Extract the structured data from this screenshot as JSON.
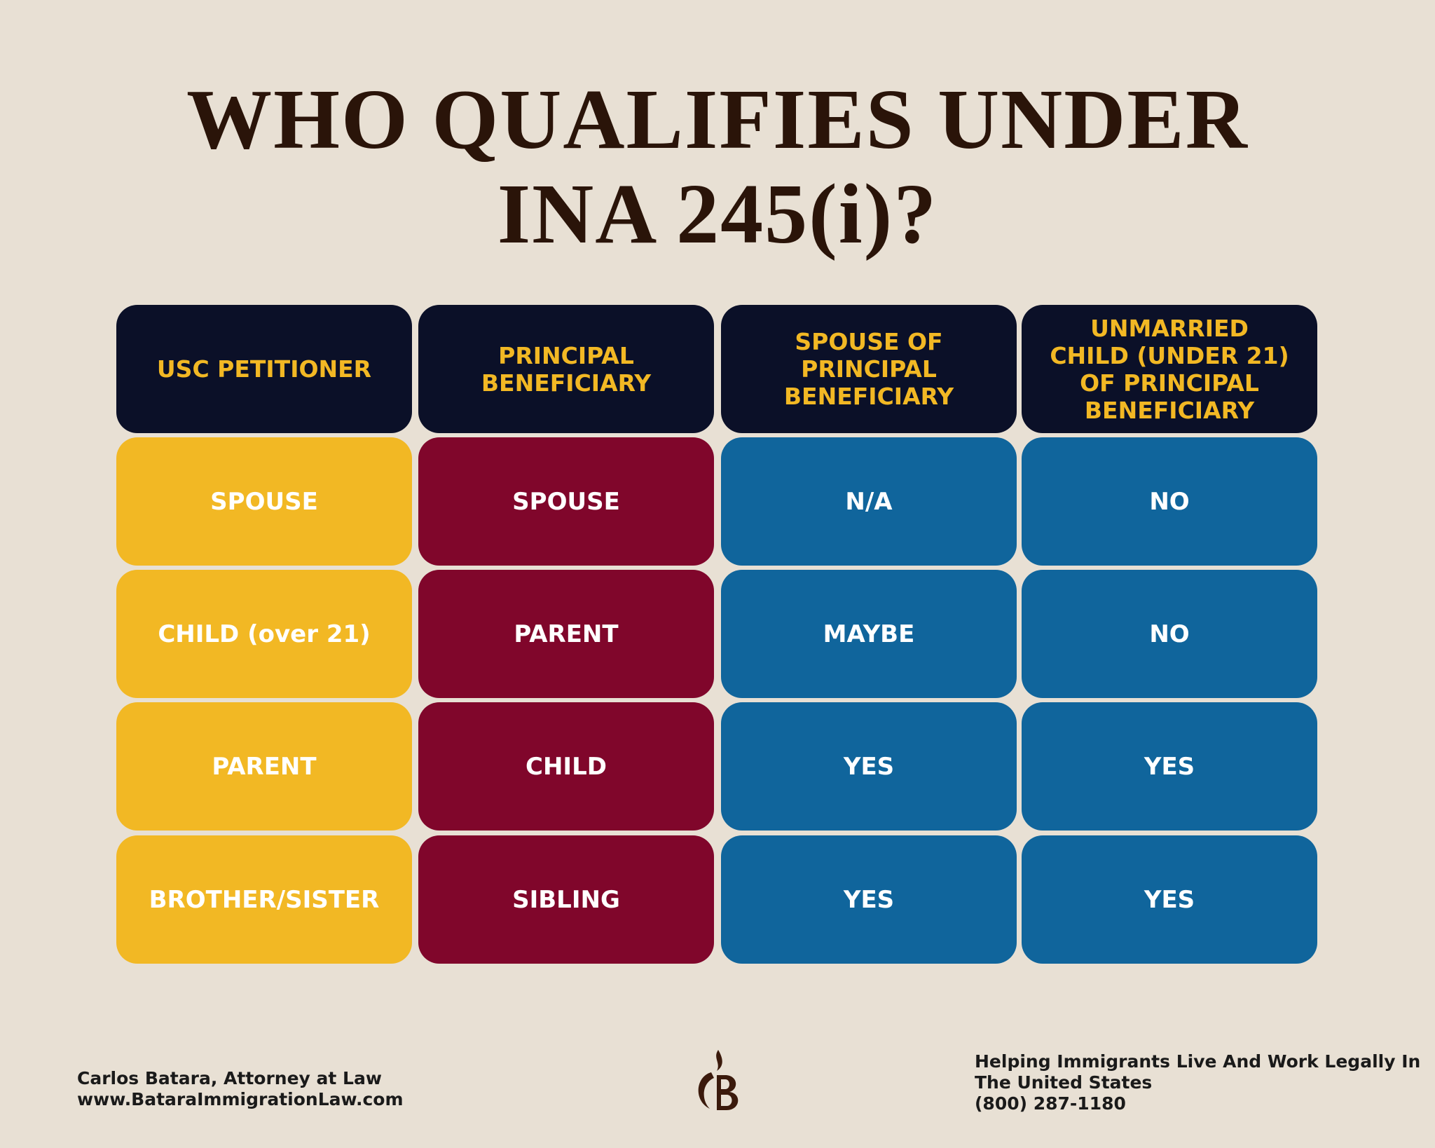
{
  "title": [
    "WHO QUALIFIES UNDER",
    "INA 245(i)?"
  ],
  "table": {
    "headers": [
      "USC PETITIONER",
      "PRINCIPAL BENEFICIARY",
      "SPOUSE OF PRINCIPAL BENEFICIARY",
      "UNMARRIED CHILD (UNDER 21) OF PRINCIPAL BENEFICIARY"
    ],
    "rows": [
      [
        "SPOUSE",
        "SPOUSE",
        "N/A",
        "NO"
      ],
      [
        "CHILD (over 21)",
        "PARENT",
        "MAYBE",
        "NO"
      ],
      [
        "PARENT",
        "CHILD",
        "YES",
        "YES"
      ],
      [
        "BROTHER/SISTER",
        "SIBLING",
        "YES",
        "YES"
      ]
    ]
  },
  "footer": {
    "left": [
      "Carlos Batara, Attorney at Law",
      "www.BataraImmigrationLaw.com"
    ],
    "right": [
      "Helping Immigrants Live And Work Legally In",
      "The United States",
      "(800) 287-1180"
    ]
  }
}
